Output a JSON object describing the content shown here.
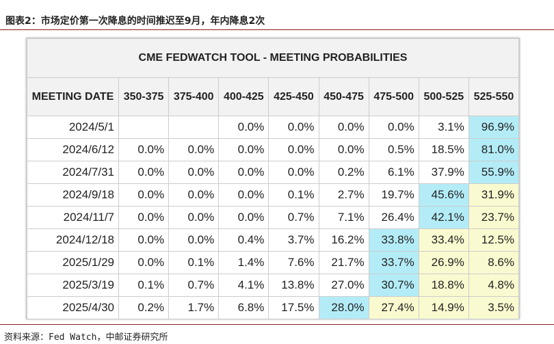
{
  "header": {
    "title": "图表2：市场定价第一次降息的时间推迟至9月，年内降息2次"
  },
  "table": {
    "title": "CME FEDWATCH TOOL - MEETING PROBABILITIES",
    "columns": [
      "MEETING DATE",
      "350-375",
      "375-400",
      "400-425",
      "425-450",
      "450-475",
      "475-500",
      "500-525",
      "525-550"
    ],
    "rows": [
      [
        "2024/5/1",
        null,
        null,
        "0.0%",
        "0.0%",
        "0.0%",
        "0.0%",
        "3.1%",
        "96.9%"
      ],
      [
        "2024/6/12",
        "0.0%",
        "0.0%",
        "0.0%",
        "0.0%",
        "0.0%",
        "0.5%",
        "18.5%",
        "81.0%"
      ],
      [
        "2024/7/31",
        "0.0%",
        "0.0%",
        "0.0%",
        "0.0%",
        "0.2%",
        "6.1%",
        "37.9%",
        "55.9%"
      ],
      [
        "2024/9/18",
        "0.0%",
        "0.0%",
        "0.0%",
        "0.1%",
        "2.7%",
        "19.7%",
        "45.6%",
        "31.9%"
      ],
      [
        "2024/11/7",
        "0.0%",
        "0.0%",
        "0.0%",
        "0.7%",
        "7.1%",
        "26.4%",
        "42.1%",
        "23.7%"
      ],
      [
        "2024/12/18",
        "0.0%",
        "0.0%",
        "0.4%",
        "3.7%",
        "16.2%",
        "33.8%",
        "33.4%",
        "12.5%"
      ],
      [
        "2025/1/29",
        "0.0%",
        "0.1%",
        "1.4%",
        "7.6%",
        "21.7%",
        "33.7%",
        "26.9%",
        "8.6%"
      ],
      [
        "2025/3/19",
        "0.1%",
        "0.7%",
        "4.1%",
        "13.8%",
        "27.0%",
        "30.7%",
        "18.8%",
        "4.8%"
      ],
      [
        "2025/4/30",
        "0.2%",
        "1.7%",
        "6.8%",
        "17.5%",
        "28.0%",
        "27.4%",
        "14.9%",
        "3.5%"
      ]
    ],
    "max_color": "#b3ecf7",
    "after_max_color": "#fafad0"
  },
  "footer": {
    "source": "资料来源：Fed Watch，中邮证券研究所"
  }
}
